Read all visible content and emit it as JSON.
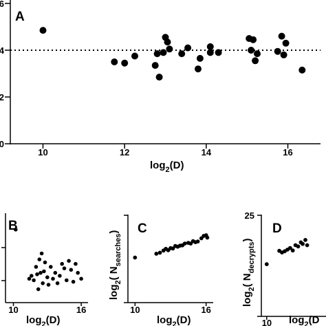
{
  "chart_data": [
    {
      "type": "scatter",
      "panel_label": "A",
      "xlabel_main": "log",
      "xlabel_sub": "2",
      "xlabel_tail": "(D)",
      "xlim": [
        9.2,
        16.8
      ],
      "ylim": [
        0,
        6
      ],
      "xticks": [
        10,
        12,
        14,
        16
      ],
      "yticks": [
        0,
        2,
        4,
        6
      ],
      "ytick_labels": [
        "0",
        "2",
        "4",
        "6"
      ],
      "reference_line": {
        "y": 4,
        "style": "dotted"
      },
      "points": [
        [
          10.0,
          4.85
        ],
        [
          11.75,
          3.5
        ],
        [
          12.0,
          3.45
        ],
        [
          12.25,
          3.75
        ],
        [
          12.75,
          3.35
        ],
        [
          12.8,
          3.85
        ],
        [
          12.85,
          2.85
        ],
        [
          12.95,
          3.9
        ],
        [
          13.0,
          4.55
        ],
        [
          13.05,
          4.35
        ],
        [
          13.1,
          4.05
        ],
        [
          13.4,
          3.85
        ],
        [
          13.55,
          4.1
        ],
        [
          13.8,
          3.2
        ],
        [
          13.85,
          3.65
        ],
        [
          14.1,
          3.9
        ],
        [
          14.1,
          4.15
        ],
        [
          14.3,
          3.9
        ],
        [
          15.05,
          4.5
        ],
        [
          15.1,
          4.0
        ],
        [
          15.15,
          4.45
        ],
        [
          15.2,
          3.55
        ],
        [
          15.25,
          3.85
        ],
        [
          15.75,
          3.95
        ],
        [
          15.85,
          4.6
        ],
        [
          15.9,
          3.8
        ],
        [
          15.95,
          4.3
        ],
        [
          16.35,
          3.15
        ]
      ]
    },
    {
      "type": "scatter",
      "panel_label": "B",
      "xlabel_main": "log",
      "xlabel_sub": "2",
      "xlabel_tail": "(D)",
      "xlim": [
        9.3,
        16.6
      ],
      "ylim": [
        0,
        6
      ],
      "xticks": [
        10,
        16
      ],
      "points": [
        [
          10.2,
          4.9
        ],
        [
          11.4,
          1.6
        ],
        [
          11.6,
          1.8
        ],
        [
          11.8,
          1.5
        ],
        [
          12.0,
          2.4
        ],
        [
          12.1,
          1.9
        ],
        [
          12.2,
          0.9
        ],
        [
          12.3,
          2.9
        ],
        [
          12.4,
          2.0
        ],
        [
          12.5,
          3.3
        ],
        [
          12.6,
          1.3
        ],
        [
          12.7,
          2.1
        ],
        [
          12.8,
          2.7
        ],
        [
          13.0,
          1.7
        ],
        [
          13.1,
          1.2
        ],
        [
          13.3,
          2.4
        ],
        [
          13.5,
          1.6
        ],
        [
          13.7,
          2.0
        ],
        [
          13.9,
          1.3
        ],
        [
          14.1,
          1.8
        ],
        [
          14.3,
          2.6
        ],
        [
          14.5,
          2.3
        ],
        [
          14.7,
          1.5
        ],
        [
          14.9,
          2.8
        ],
        [
          15.1,
          2.2
        ],
        [
          15.3,
          1.4
        ],
        [
          15.5,
          2.6
        ],
        [
          15.7,
          2.0
        ],
        [
          16.0,
          1.6
        ]
      ]
    },
    {
      "type": "scatter",
      "panel_label": "C",
      "ylabel_main": "log",
      "ylabel_sub": "2",
      "ylabel_open": "( N",
      "ylabel_sub2": "searches",
      "ylabel_close": ")",
      "xlabel_main": "log",
      "xlabel_sub": "2",
      "xlabel_tail": "(D)",
      "xlim": [
        9.4,
        16.6
      ],
      "ylim": [
        0,
        25
      ],
      "xticks": [
        10,
        16
      ],
      "points": [
        [
          10.0,
          12.9
        ],
        [
          11.8,
          14.0
        ],
        [
          12.1,
          14.3
        ],
        [
          12.4,
          14.9
        ],
        [
          12.6,
          15.4
        ],
        [
          12.8,
          15.0
        ],
        [
          13.0,
          15.6
        ],
        [
          13.2,
          15.5
        ],
        [
          13.4,
          16.2
        ],
        [
          13.6,
          16.0
        ],
        [
          13.8,
          16.3
        ],
        [
          14.0,
          16.4
        ],
        [
          14.2,
          16.9
        ],
        [
          14.5,
          17.1
        ],
        [
          14.7,
          16.9
        ],
        [
          14.9,
          17.6
        ],
        [
          15.1,
          17.3
        ],
        [
          15.3,
          17.5
        ],
        [
          15.6,
          18.4
        ],
        [
          15.8,
          19.1
        ],
        [
          16.0,
          19.3
        ],
        [
          16.1,
          18.6
        ]
      ]
    },
    {
      "type": "scatter",
      "panel_label": "D",
      "ylabel_main": "log",
      "ylabel_sub": "2",
      "ylabel_open": "( N",
      "ylabel_sub2": "decrypts",
      "ylabel_close": ")",
      "xlabel_main": "log",
      "xlabel_sub": "2",
      "xlabel_tail": "(D",
      "xlim": [
        9.4,
        16.6
      ],
      "ylim": [
        0,
        25
      ],
      "yticks": [
        25
      ],
      "ytick_labels": [
        "25"
      ],
      "xticks": [
        10
      ],
      "points": [
        [
          10.0,
          12.9
        ],
        [
          11.4,
          16.2
        ],
        [
          11.7,
          15.8
        ],
        [
          12.0,
          16.1
        ],
        [
          12.3,
          16.5
        ],
        [
          12.6,
          16.9
        ],
        [
          12.9,
          16.3
        ],
        [
          13.2,
          17.6
        ],
        [
          13.5,
          17.3
        ],
        [
          13.8,
          18.3
        ],
        [
          14.0,
          17.9
        ],
        [
          14.3,
          18.9
        ],
        [
          14.5,
          17.6
        ]
      ]
    }
  ]
}
